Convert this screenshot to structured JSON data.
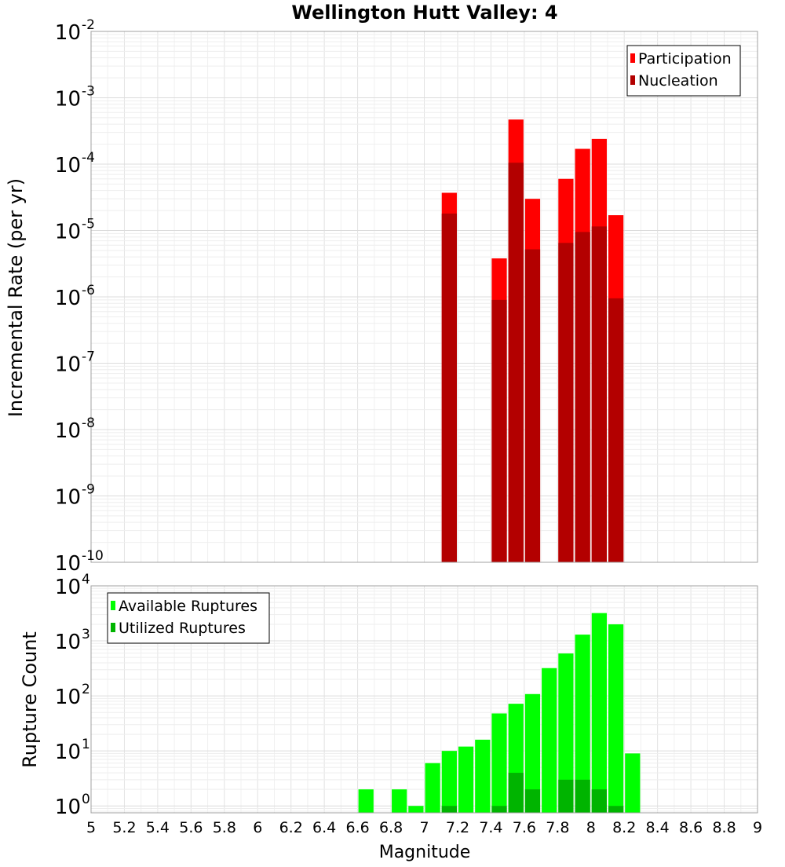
{
  "chart_data": {
    "title": "Wellington Hutt Valley: 4",
    "shared_x": {
      "label": "Magnitude",
      "range": [
        5,
        9
      ],
      "ticks": [
        5,
        5.2,
        5.4,
        5.6,
        5.8,
        6,
        6.2,
        6.4,
        6.6,
        6.8,
        7,
        7.2,
        7.4,
        7.6,
        7.8,
        8,
        8.2,
        8.4,
        8.6,
        8.8,
        9
      ],
      "tick_labels": [
        "5",
        "5.2",
        "5.4",
        "5.6",
        "5.8",
        "6",
        "6.2",
        "6.4",
        "6.6",
        "6.8",
        "7",
        "7.2",
        "7.4",
        "7.6",
        "7.8",
        "8",
        "8.2",
        "8.4",
        "8.6",
        "8.8",
        "9"
      ],
      "bin_width": 0.1
    },
    "panels": [
      {
        "type": "bar",
        "ylabel": "Incremental Rate (per yr)",
        "yscale": "log",
        "ylim": [
          1e-10,
          0.01
        ],
        "y_tick_exponents": [
          -10,
          -9,
          -8,
          -7,
          -6,
          -5,
          -4,
          -3,
          -2
        ],
        "legend": {
          "position": "top-right"
        },
        "series": [
          {
            "name": "Participation",
            "color": "#ff0000",
            "points": [
              {
                "x": 7.15,
                "y": 3.7e-05
              },
              {
                "x": 7.45,
                "y": 3.8e-06
              },
              {
                "x": 7.55,
                "y": 0.00047
              },
              {
                "x": 7.65,
                "y": 3e-05
              },
              {
                "x": 7.85,
                "y": 6e-05
              },
              {
                "x": 7.95,
                "y": 0.00017
              },
              {
                "x": 8.05,
                "y": 0.00024
              },
              {
                "x": 8.15,
                "y": 1.7e-05
              }
            ]
          },
          {
            "name": "Nucleation",
            "color": "#b30000",
            "points": [
              {
                "x": 7.15,
                "y": 1.8e-05
              },
              {
                "x": 7.45,
                "y": 9e-07
              },
              {
                "x": 7.55,
                "y": 0.000105
              },
              {
                "x": 7.65,
                "y": 5.2e-06
              },
              {
                "x": 7.85,
                "y": 6.5e-06
              },
              {
                "x": 7.95,
                "y": 9.5e-06
              },
              {
                "x": 8.05,
                "y": 1.15e-05
              },
              {
                "x": 8.15,
                "y": 9.5e-07
              }
            ]
          }
        ]
      },
      {
        "type": "bar",
        "ylabel": "Rupture Count",
        "yscale": "log",
        "ylim": [
          0.75,
          10000
        ],
        "y_tick_exponents": [
          0,
          1,
          2,
          3,
          4
        ],
        "legend": {
          "position": "top-left"
        },
        "series": [
          {
            "name": "Available Ruptures",
            "color": "#00ff00",
            "points": [
              {
                "x": 6.65,
                "y": 2
              },
              {
                "x": 6.85,
                "y": 2
              },
              {
                "x": 6.95,
                "y": 1
              },
              {
                "x": 7.05,
                "y": 6
              },
              {
                "x": 7.15,
                "y": 10
              },
              {
                "x": 7.25,
                "y": 12
              },
              {
                "x": 7.35,
                "y": 16
              },
              {
                "x": 7.45,
                "y": 48
              },
              {
                "x": 7.55,
                "y": 72
              },
              {
                "x": 7.65,
                "y": 108
              },
              {
                "x": 7.75,
                "y": 320
              },
              {
                "x": 7.85,
                "y": 590
              },
              {
                "x": 7.95,
                "y": 1300
              },
              {
                "x": 8.05,
                "y": 3200
              },
              {
                "x": 8.15,
                "y": 2000
              },
              {
                "x": 8.25,
                "y": 9
              }
            ]
          },
          {
            "name": "Utilized Ruptures",
            "color": "#00b400",
            "points": [
              {
                "x": 7.15,
                "y": 1
              },
              {
                "x": 7.45,
                "y": 1
              },
              {
                "x": 7.55,
                "y": 4
              },
              {
                "x": 7.65,
                "y": 2
              },
              {
                "x": 7.85,
                "y": 3
              },
              {
                "x": 7.95,
                "y": 3
              },
              {
                "x": 8.05,
                "y": 2
              },
              {
                "x": 8.15,
                "y": 1
              }
            ]
          }
        ]
      }
    ]
  }
}
